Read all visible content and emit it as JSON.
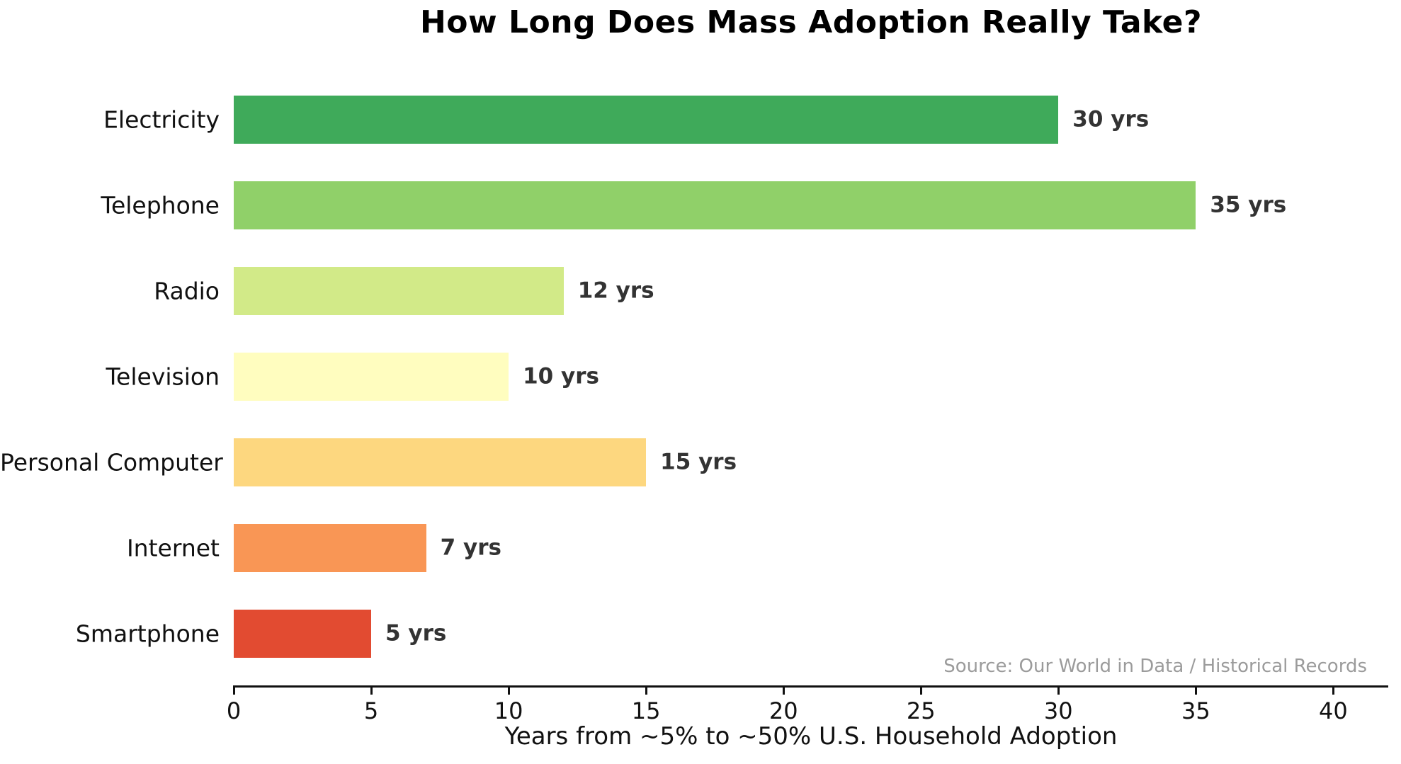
{
  "chart_data": {
    "type": "bar",
    "orientation": "horizontal",
    "title": "How Long Does Mass Adoption Really Take?",
    "xlabel": "Years from ~5% to ~50% U.S. Household Adoption",
    "source": "Source: Our World in Data / Historical Records",
    "categories": [
      "Electricity",
      "Telephone",
      "Radio",
      "Television",
      "Personal Computer",
      "Internet",
      "Smartphone"
    ],
    "values": [
      30,
      35,
      12,
      10,
      15,
      7,
      5
    ],
    "value_labels": [
      "30 yrs",
      "35 yrs",
      "12 yrs",
      "10 yrs",
      "15 yrs",
      "7 yrs",
      "5 yrs"
    ],
    "bar_colors": [
      "#3faa5a",
      "#90d069",
      "#d2ea88",
      "#fffdbf",
      "#fdd77f",
      "#f99655",
      "#e24b31"
    ],
    "xlim": [
      0,
      42
    ],
    "xticks": [
      0,
      5,
      10,
      15,
      20,
      25,
      30,
      35,
      40
    ],
    "grid": false,
    "legend_position": "none",
    "colors": {
      "title": "#000000",
      "category_label": "#111111",
      "value_label": "#333333",
      "tick_label": "#111111",
      "axis_line": "#111111",
      "axis_title": "#111111",
      "source": "#9b9b9b",
      "background": "#ffffff"
    }
  }
}
